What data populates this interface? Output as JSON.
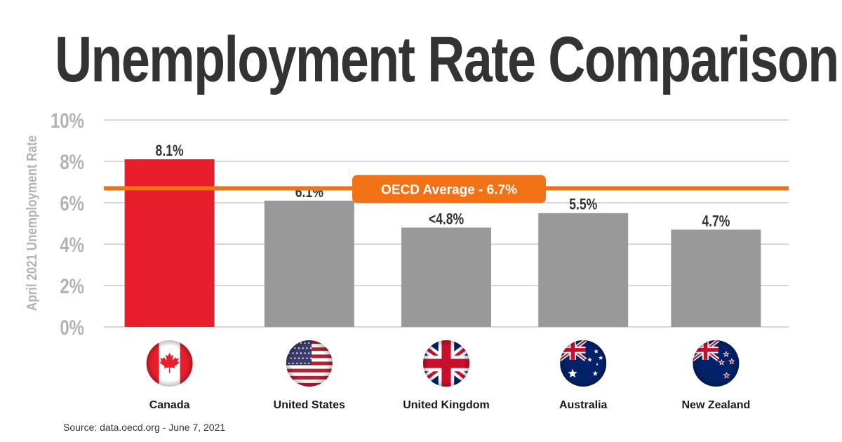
{
  "title": "Unemployment Rate Comparison",
  "source": "Source: data.oecd.org - June 7, 2021",
  "colors": {
    "highlight": "#e81e2d",
    "bar": "#999999",
    "average_line": "#f47216",
    "title": "#333333",
    "axis_text": "#b3b3b3",
    "grid": "#b0b0b0"
  },
  "chart_data": {
    "type": "bar",
    "title": "Unemployment Rate Comparison",
    "ylabel": "April 2021 Unemployment Rate",
    "xlabel": "",
    "ylim": [
      0,
      10
    ],
    "yticks": [
      0,
      2,
      4,
      6,
      8,
      10
    ],
    "ytick_labels": [
      "0%",
      "2%",
      "4%",
      "6%",
      "8%",
      "10%"
    ],
    "categories": [
      "Canada",
      "United States",
      "United Kingdom",
      "Australia",
      "New Zealand"
    ],
    "values": [
      8.1,
      6.1,
      4.8,
      5.5,
      4.7
    ],
    "data_labels": [
      "8.1%",
      "6.1%",
      "<4.8%",
      "5.5%",
      "4.7%"
    ],
    "highlight_category": "Canada",
    "flags": [
      "canada-flag-icon",
      "usa-flag-icon",
      "uk-flag-icon",
      "australia-flag-icon",
      "new-zealand-flag-icon"
    ],
    "grid": true,
    "reference_line": {
      "label": "OECD Average - 6.7%",
      "value": 6.7
    }
  }
}
